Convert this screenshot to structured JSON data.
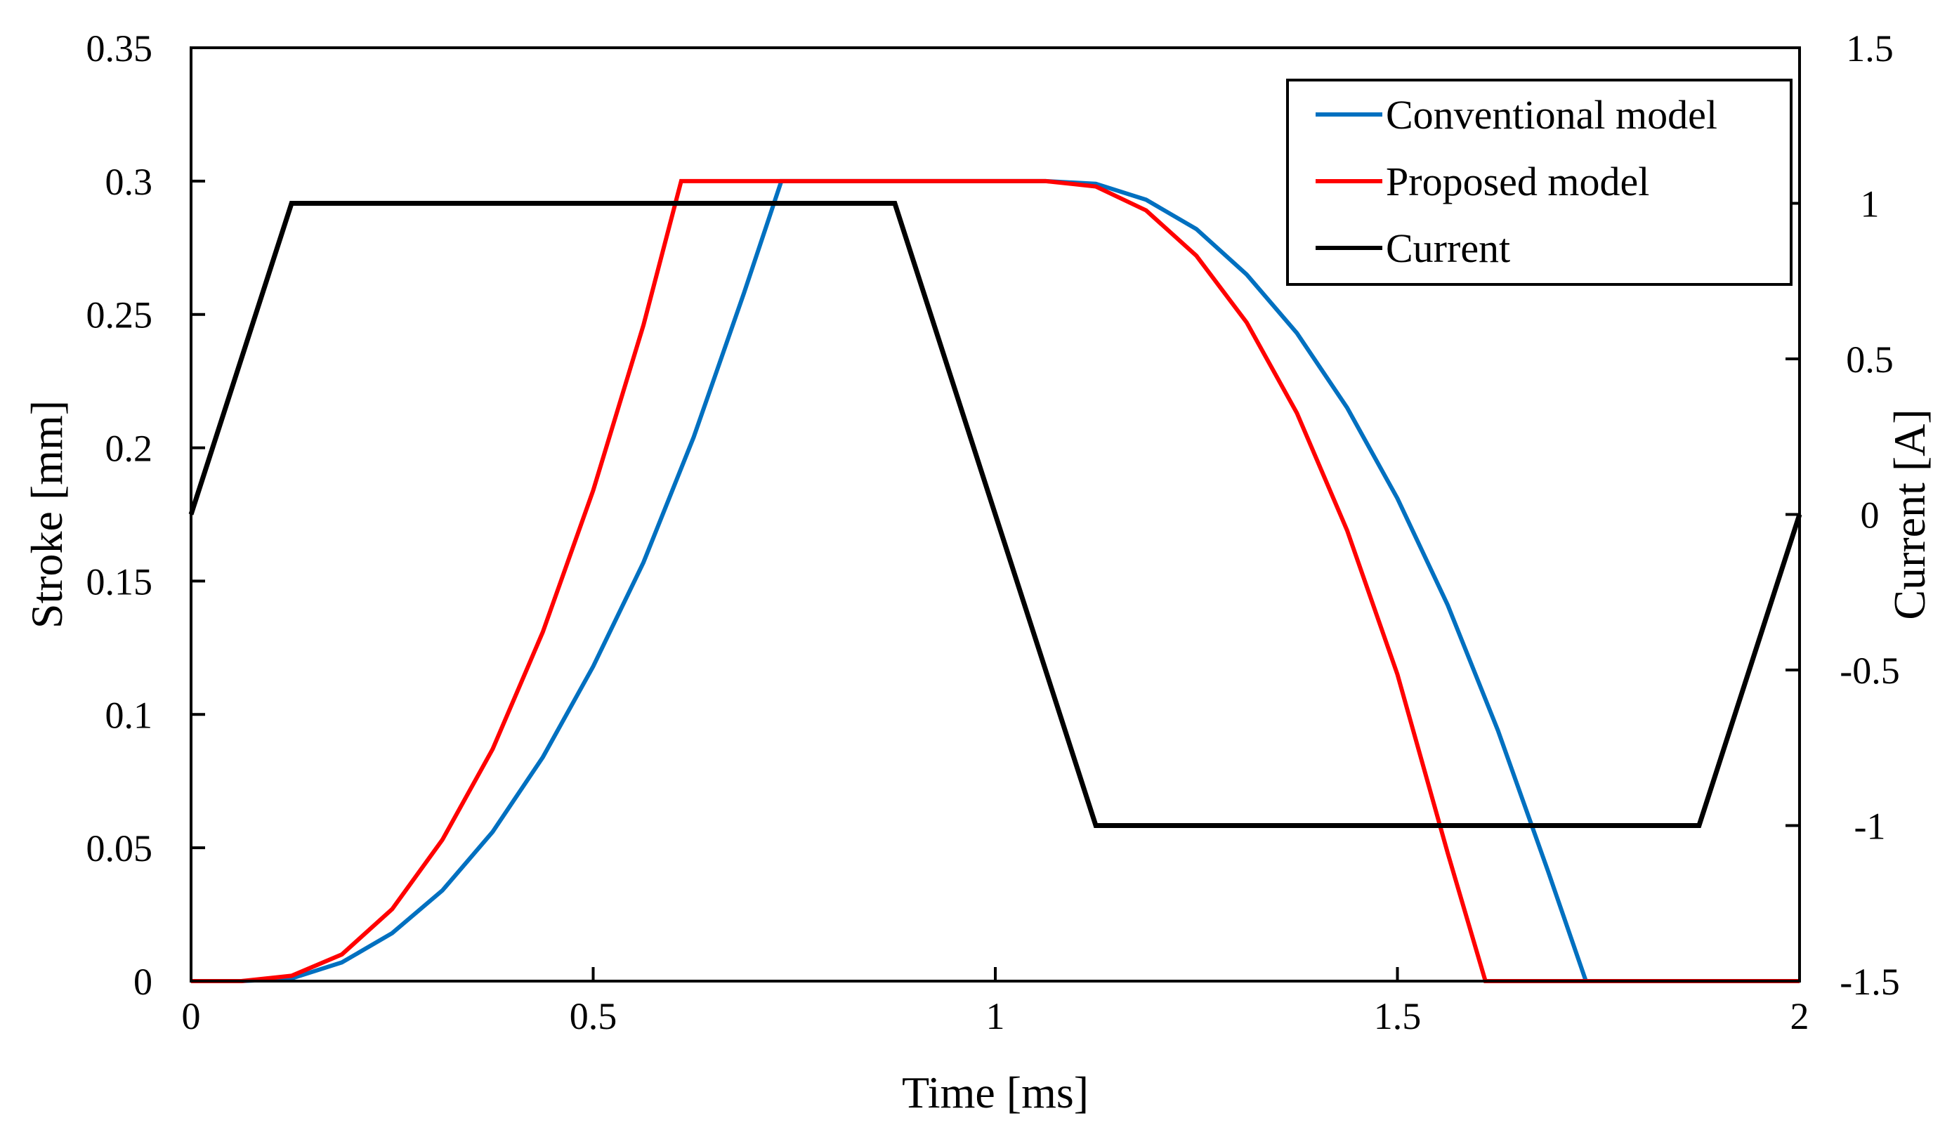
{
  "chart_data": {
    "type": "line",
    "xlabel": "Time [ms]",
    "ylabel": "Stroke [mm]",
    "y2label": "Current [A]",
    "xlim": [
      0,
      2
    ],
    "ylim": [
      0,
      0.35
    ],
    "y2lim": [
      -1.5,
      1.5
    ],
    "x_ticks": [
      "0",
      "0.5",
      "1",
      "1.5",
      "2"
    ],
    "y_ticks": [
      "0",
      "0.05",
      "0.1",
      "0.15",
      "0.2",
      "0.25",
      "0.3",
      "0.35"
    ],
    "y2_ticks": [
      "-1.5",
      "-1",
      "-0.5",
      "0",
      "0.5",
      "1",
      "1.5"
    ],
    "legend_position": "top-right",
    "series": [
      {
        "name": "Conventional model",
        "axis": "left",
        "color": "#0070C0",
        "x": [
          0,
          0.0625,
          0.125,
          0.1875,
          0.25,
          0.3125,
          0.375,
          0.4375,
          0.5,
          0.5625,
          0.625,
          0.6875,
          0.734,
          0.8,
          0.9,
          1.0,
          1.0625,
          1.125,
          1.1875,
          1.25,
          1.3125,
          1.375,
          1.4375,
          1.5,
          1.5625,
          1.625,
          1.6875,
          1.7344,
          1.8,
          1.9,
          2.0
        ],
        "values": [
          0,
          0,
          0.001,
          0.007,
          0.018,
          0.034,
          0.056,
          0.084,
          0.118,
          0.157,
          0.204,
          0.258,
          0.3,
          0.3,
          0.3,
          0.3,
          0.3,
          0.299,
          0.293,
          0.282,
          0.265,
          0.243,
          0.215,
          0.181,
          0.141,
          0.094,
          0.041,
          0,
          0,
          0,
          0
        ]
      },
      {
        "name": "Proposed model",
        "axis": "left",
        "color": "#FF0000",
        "x": [
          0,
          0.0625,
          0.125,
          0.1875,
          0.25,
          0.3125,
          0.375,
          0.4375,
          0.5,
          0.5625,
          0.6094,
          0.7,
          0.8,
          0.9,
          1.0,
          1.0625,
          1.125,
          1.1875,
          1.25,
          1.3125,
          1.375,
          1.4375,
          1.5,
          1.5625,
          1.6094,
          1.7,
          1.8,
          1.9,
          2.0
        ],
        "values": [
          0,
          0,
          0.002,
          0.01,
          0.027,
          0.053,
          0.087,
          0.131,
          0.184,
          0.246,
          0.3,
          0.3,
          0.3,
          0.3,
          0.3,
          0.3,
          0.298,
          0.289,
          0.272,
          0.247,
          0.213,
          0.169,
          0.115,
          0.048,
          0,
          0,
          0,
          0,
          0
        ]
      },
      {
        "name": "Current",
        "axis": "right",
        "color": "#000000",
        "x": [
          0,
          0.125,
          0.875,
          1.125,
          1.875,
          2.0
        ],
        "values": [
          0,
          1,
          1,
          -1,
          -1,
          0
        ]
      }
    ]
  }
}
